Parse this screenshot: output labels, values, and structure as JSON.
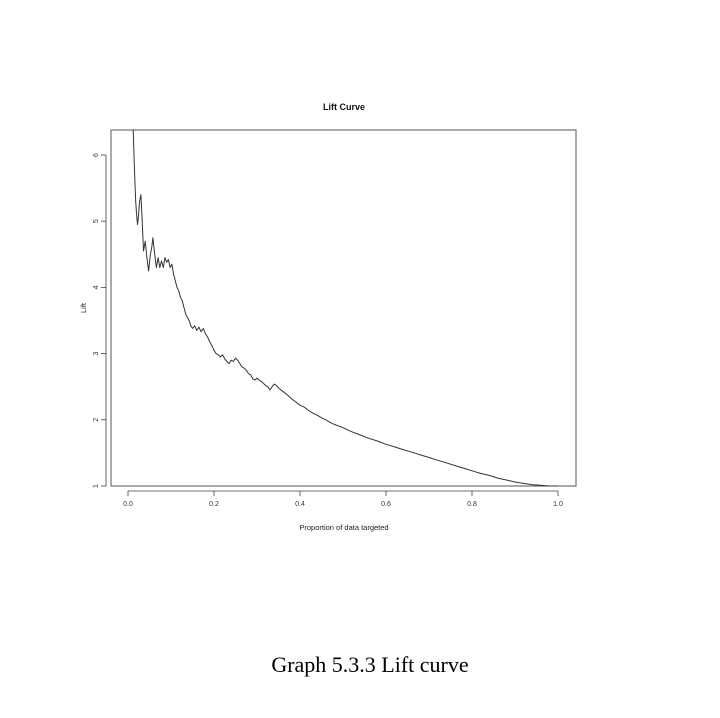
{
  "figure": {
    "caption": "Graph 5.3.3 Lift curve"
  },
  "chart_data": {
    "type": "line",
    "title": "Lift Curve",
    "xlabel": "Proportion of data targeted",
    "ylabel": "Lift",
    "xlim": [
      0.0,
      1.0
    ],
    "ylim": [
      1,
      6.5
    ],
    "x_ticks": [
      "0.0",
      "0.2",
      "0.4",
      "0.6",
      "0.8",
      "1.0"
    ],
    "y_ticks": [
      "1",
      "2",
      "3",
      "4",
      "5",
      "6"
    ],
    "grid": false,
    "series": [
      {
        "color": "#333333",
        "x": [
          0.012,
          0.014,
          0.016,
          0.018,
          0.02,
          0.022,
          0.024,
          0.027,
          0.03,
          0.033,
          0.036,
          0.04,
          0.044,
          0.048,
          0.052,
          0.055,
          0.058,
          0.062,
          0.066,
          0.07,
          0.074,
          0.078,
          0.082,
          0.086,
          0.09,
          0.094,
          0.098,
          0.102,
          0.106,
          0.11,
          0.114,
          0.118,
          0.122,
          0.126,
          0.13,
          0.134,
          0.138,
          0.142,
          0.146,
          0.15,
          0.155,
          0.16,
          0.165,
          0.17,
          0.175,
          0.18,
          0.185,
          0.19,
          0.195,
          0.2,
          0.205,
          0.21,
          0.215,
          0.22,
          0.225,
          0.23,
          0.235,
          0.24,
          0.245,
          0.25,
          0.255,
          0.26,
          0.265,
          0.27,
          0.275,
          0.28,
          0.285,
          0.29,
          0.295,
          0.3,
          0.305,
          0.31,
          0.315,
          0.32,
          0.325,
          0.33,
          0.335,
          0.34,
          0.345,
          0.35,
          0.36,
          0.37,
          0.38,
          0.39,
          0.4,
          0.41,
          0.42,
          0.43,
          0.44,
          0.45,
          0.46,
          0.47,
          0.48,
          0.5,
          0.52,
          0.54,
          0.56,
          0.58,
          0.6,
          0.62,
          0.64,
          0.66,
          0.68,
          0.7,
          0.72,
          0.74,
          0.76,
          0.78,
          0.8,
          0.82,
          0.84,
          0.86,
          0.88,
          0.9,
          0.92,
          0.94,
          0.96,
          0.98,
          1.0
        ],
        "y": [
          6.5,
          6.0,
          5.6,
          5.3,
          5.1,
          4.95,
          5.05,
          5.3,
          5.4,
          5.0,
          4.55,
          4.7,
          4.45,
          4.25,
          4.5,
          4.6,
          4.75,
          4.5,
          4.3,
          4.45,
          4.3,
          4.4,
          4.3,
          4.45,
          4.38,
          4.42,
          4.3,
          4.35,
          4.2,
          4.1,
          4.0,
          3.95,
          3.85,
          3.8,
          3.7,
          3.6,
          3.55,
          3.5,
          3.42,
          3.38,
          3.42,
          3.35,
          3.4,
          3.33,
          3.38,
          3.3,
          3.25,
          3.18,
          3.12,
          3.05,
          3.0,
          2.98,
          2.95,
          2.98,
          2.92,
          2.88,
          2.85,
          2.9,
          2.88,
          2.93,
          2.9,
          2.85,
          2.8,
          2.78,
          2.75,
          2.7,
          2.68,
          2.62,
          2.6,
          2.63,
          2.6,
          2.58,
          2.55,
          2.52,
          2.5,
          2.45,
          2.5,
          2.54,
          2.52,
          2.48,
          2.43,
          2.38,
          2.32,
          2.27,
          2.22,
          2.19,
          2.14,
          2.1,
          2.07,
          2.03,
          2.0,
          1.96,
          1.93,
          1.88,
          1.82,
          1.77,
          1.72,
          1.68,
          1.63,
          1.59,
          1.55,
          1.51,
          1.47,
          1.43,
          1.39,
          1.35,
          1.31,
          1.27,
          1.23,
          1.19,
          1.16,
          1.12,
          1.09,
          1.06,
          1.04,
          1.02,
          1.01,
          1.0,
          1.0
        ]
      }
    ]
  }
}
